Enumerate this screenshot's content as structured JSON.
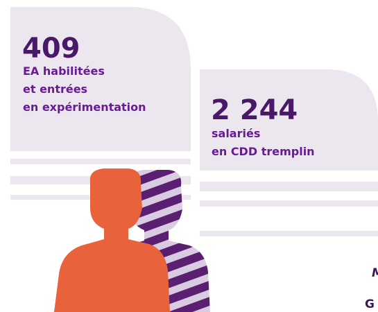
{
  "stat1": {
    "number": "409",
    "lines": [
      "EA habilitées",
      "et entrées",
      "en expérimentation"
    ]
  },
  "stat2": {
    "number": "2 244",
    "lines": [
      "salariés",
      "en CDD tremplin"
    ]
  },
  "cut_text": [
    "M",
    "G"
  ]
}
